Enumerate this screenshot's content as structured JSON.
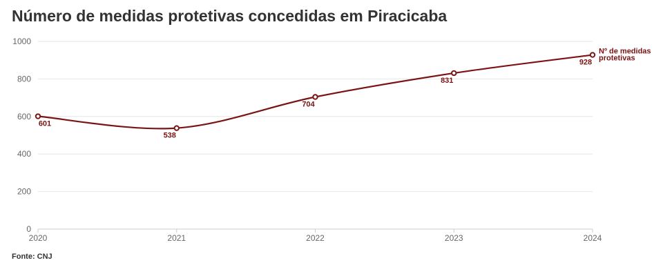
{
  "title": "Número de medidas protetivas concedidas em Piracicaba",
  "source": "Fonte: CNJ",
  "chart_data": {
    "type": "line",
    "x": [
      "2020",
      "2021",
      "2022",
      "2023",
      "2024"
    ],
    "series": [
      {
        "name_lines": [
          "Nº de medidas",
          "protetivas"
        ],
        "values": [
          601,
          538,
          704,
          831,
          928
        ],
        "color": "#7a1414"
      }
    ],
    "data_labels": [
      "601",
      "538",
      "704",
      "831",
      "928"
    ],
    "y_ticks": [
      "0",
      "200",
      "400",
      "600",
      "800",
      "1000"
    ],
    "ylim": [
      0,
      1000
    ],
    "grid": true,
    "legend": "end-of-line label"
  }
}
